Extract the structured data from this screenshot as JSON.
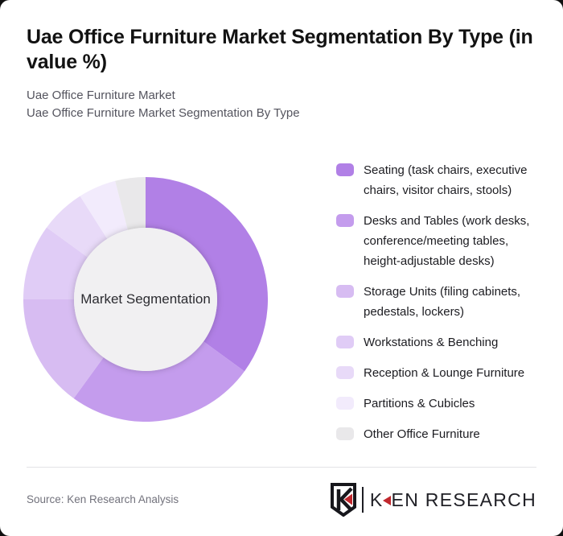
{
  "page": {
    "background": "#101010",
    "card_background": "#ffffff"
  },
  "header": {
    "title_line1": "Uae Office Furniture Market Segmentation By Type (in",
    "title_line2": "value %)",
    "subtitle_line1": "Uae Office Furniture Market",
    "subtitle_line2": "Uae Office Furniture Market Segmentation By Type"
  },
  "chart_data": {
    "type": "pie",
    "variant": "donut",
    "title": "Uae Office Furniture Market Segmentation By Type (in value %)",
    "unit": "value %",
    "center_label": "Market Segmentation",
    "legend_position": "right",
    "start_angle_deg": 0,
    "direction": "clockwise",
    "hole_color": "#f1f0f2",
    "series": [
      {
        "id": "seating",
        "label": "Seating (task chairs, executive chairs, visitor chairs, stools)",
        "value": 35,
        "color": "#b180e6"
      },
      {
        "id": "desks-and-tables",
        "label": "Desks and Tables (work desks, conference/meeting tables, height-adjustable desks)",
        "value": 25,
        "color": "#c49ced"
      },
      {
        "id": "storage-units",
        "label": "Storage Units (filing cabinets, pedestals, lockers)",
        "value": 15,
        "color": "#d7bcf2"
      },
      {
        "id": "workstations-benching",
        "label": "Workstations & Benching",
        "value": 10,
        "color": "#e0ccf6"
      },
      {
        "id": "reception-lounge",
        "label": "Reception & Lounge Furniture",
        "value": 6,
        "color": "#e8daf8"
      },
      {
        "id": "partitions-cubicles",
        "label": "Partitions & Cubicles",
        "value": 5,
        "color": "#f2ebfc"
      },
      {
        "id": "other-office-furniture",
        "label": "Other Office Furniture",
        "value": 4,
        "color": "#e9e8ea"
      }
    ]
  },
  "footer": {
    "source": "Source: Ken Research Analysis",
    "logo_first_letter": "K",
    "logo_rest": "EN RESEARCH",
    "brand_red": "#c1272d"
  }
}
